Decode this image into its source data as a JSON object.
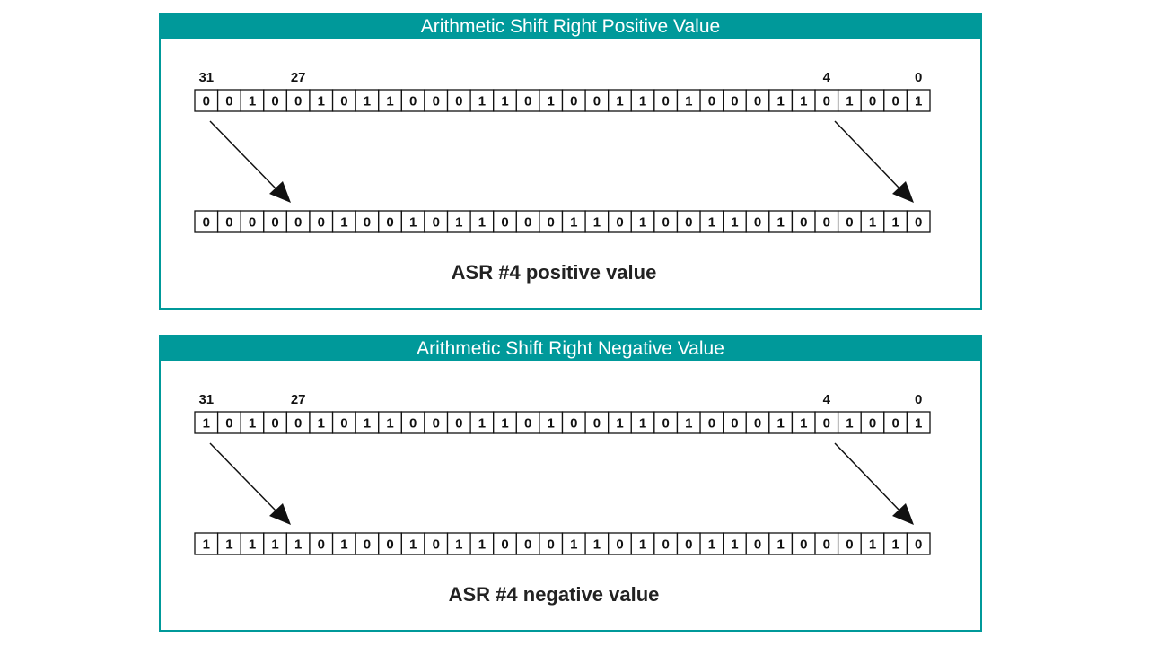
{
  "colors": {
    "accent": "#00999a",
    "ink": "#111111",
    "background": "#ffffff"
  },
  "panels": [
    {
      "title": "Arithmetic Shift Right Positive Value",
      "index_labels": [
        "31",
        "27",
        "4",
        "0"
      ],
      "input_bits": [
        "0",
        "0",
        "1",
        "0",
        "0",
        "1",
        "0",
        "1",
        "1",
        "0",
        "0",
        "0",
        "1",
        "1",
        "0",
        "1",
        "0",
        "0",
        "1",
        "1",
        "0",
        "1",
        "0",
        "0",
        "0",
        "1",
        "1",
        "0",
        "1",
        "0",
        "0",
        "1"
      ],
      "output_bits": [
        "0",
        "0",
        "0",
        "0",
        "0",
        "0",
        "1",
        "0",
        "0",
        "1",
        "0",
        "1",
        "1",
        "0",
        "0",
        "0",
        "1",
        "1",
        "0",
        "1",
        "0",
        "0",
        "1",
        "1",
        "0",
        "1",
        "0",
        "0",
        "0",
        "1",
        "1",
        "0"
      ],
      "caption": "ASR #4 positive value"
    },
    {
      "title": "Arithmetic Shift Right Negative Value",
      "index_labels": [
        "31",
        "27",
        "4",
        "0"
      ],
      "input_bits": [
        "1",
        "0",
        "1",
        "0",
        "0",
        "1",
        "0",
        "1",
        "1",
        "0",
        "0",
        "0",
        "1",
        "1",
        "0",
        "1",
        "0",
        "0",
        "1",
        "1",
        "0",
        "1",
        "0",
        "0",
        "0",
        "1",
        "1",
        "0",
        "1",
        "0",
        "0",
        "1"
      ],
      "output_bits": [
        "1",
        "1",
        "1",
        "1",
        "1",
        "0",
        "1",
        "0",
        "0",
        "1",
        "0",
        "1",
        "1",
        "0",
        "0",
        "0",
        "1",
        "1",
        "0",
        "1",
        "0",
        "0",
        "1",
        "1",
        "0",
        "1",
        "0",
        "0",
        "0",
        "1",
        "1",
        "0"
      ],
      "caption": "ASR #4 negative value"
    }
  ]
}
